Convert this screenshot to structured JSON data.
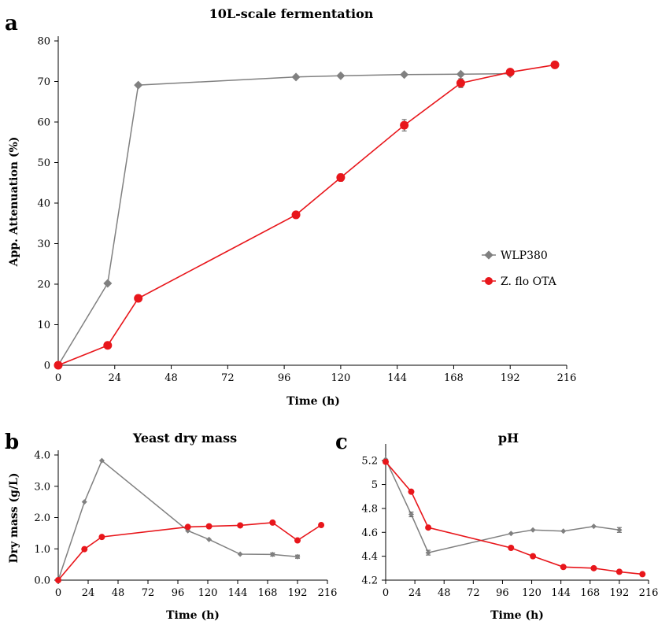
{
  "colors": {
    "wlp": "#808080",
    "zflo": "#e8161b",
    "axis": "#000000"
  },
  "legend": {
    "series_a": "WLP380",
    "series_b": "Z. flo OTA",
    "placement": "center-right"
  },
  "chart_data": [
    {
      "panel": "a",
      "type": "line",
      "title": "10L-scale fermentation",
      "xlabel": "Time (h)",
      "ylabel": "App. Attenuation (%)",
      "xlim": [
        0,
        216
      ],
      "ylim": [
        0,
        80
      ],
      "xticks": [
        0,
        24,
        48,
        72,
        96,
        120,
        144,
        168,
        192,
        216
      ],
      "yticks": [
        0,
        10,
        20,
        30,
        40,
        50,
        60,
        70,
        80
      ],
      "ytick_labels": [
        "0",
        "10",
        "20",
        "30",
        "40",
        "50",
        "60",
        "70",
        "80"
      ],
      "grid": false,
      "legend": true,
      "series": [
        {
          "name": "WLP380",
          "marker": "diamond",
          "x": [
            0,
            21,
            34,
            101,
            120,
            147,
            171,
            192
          ],
          "y": [
            0,
            20.2,
            69.1,
            71.1,
            71.4,
            71.7,
            71.8,
            71.9
          ],
          "err": [
            0,
            0,
            0,
            0,
            0,
            0,
            0,
            0
          ]
        },
        {
          "name": "Z. flo OTA",
          "marker": "circle",
          "x": [
            0,
            21,
            34,
            101,
            120,
            147,
            171,
            192,
            211
          ],
          "y": [
            0,
            4.9,
            16.5,
            37.1,
            46.3,
            59.2,
            69.6,
            72.3,
            74.1
          ],
          "err": [
            0,
            0,
            0,
            0,
            0.9,
            1.4,
            1.1,
            0,
            0
          ]
        }
      ]
    },
    {
      "panel": "b",
      "type": "line",
      "title": "Yeast dry mass",
      "xlabel": "Time (h)",
      "ylabel": "Dry mass (g/L)",
      "xlim": [
        0,
        216
      ],
      "ylim": [
        0,
        4
      ],
      "xticks": [
        0,
        24,
        48,
        72,
        96,
        120,
        144,
        168,
        192,
        216
      ],
      "yticks": [
        0,
        1,
        2,
        3,
        4
      ],
      "ytick_labels": [
        "0.0",
        "1.0",
        "2.0",
        "3.0",
        "4.0"
      ],
      "grid": false,
      "legend": false,
      "series": [
        {
          "name": "WLP380",
          "marker": "diamond",
          "x": [
            0,
            21,
            35,
            104,
            121,
            146,
            172,
            192
          ],
          "y": [
            0,
            2.5,
            3.82,
            1.58,
            1.3,
            0.83,
            0.82,
            0.75
          ],
          "err": [
            0,
            0,
            0,
            0,
            0,
            0,
            0.05,
            0.05
          ]
        },
        {
          "name": "Z. flo OTA",
          "marker": "circle",
          "x": [
            0,
            21,
            35,
            104,
            121,
            146,
            172,
            192,
            211
          ],
          "y": [
            0,
            0.99,
            1.38,
            1.7,
            1.72,
            1.75,
            1.84,
            1.27,
            1.76
          ],
          "err": [
            0,
            0,
            0,
            0,
            0,
            0,
            0,
            0,
            0
          ]
        }
      ]
    },
    {
      "panel": "c",
      "type": "line",
      "title": "pH",
      "xlabel": "Time (h)",
      "ylabel": "",
      "xlim": [
        0,
        216
      ],
      "ylim": [
        4.2,
        5.3
      ],
      "xticks": [
        0,
        24,
        48,
        72,
        96,
        120,
        144,
        168,
        192,
        216
      ],
      "yticks": [
        4.2,
        4.4,
        4.6,
        4.8,
        5.0,
        5.2
      ],
      "ytick_labels": [
        "4.2",
        "4.4",
        "4.6",
        "4.8",
        "5",
        "5.2"
      ],
      "grid": false,
      "legend": false,
      "series": [
        {
          "name": "WLP380",
          "marker": "diamond",
          "x": [
            0,
            21,
            35,
            103,
            121,
            146,
            171,
            192
          ],
          "y": [
            5.21,
            4.75,
            4.43,
            4.59,
            4.62,
            4.61,
            4.65,
            4.62
          ],
          "err": [
            0,
            0.02,
            0.02,
            0,
            0,
            0,
            0,
            0.02
          ]
        },
        {
          "name": "Z. flo OTA",
          "marker": "circle",
          "x": [
            0,
            21,
            35,
            103,
            121,
            146,
            171,
            192,
            211
          ],
          "y": [
            5.19,
            4.94,
            4.64,
            4.47,
            4.4,
            4.31,
            4.3,
            4.27,
            4.25
          ],
          "err": [
            0,
            0,
            0,
            0,
            0,
            0,
            0,
            0,
            0
          ]
        }
      ]
    }
  ]
}
